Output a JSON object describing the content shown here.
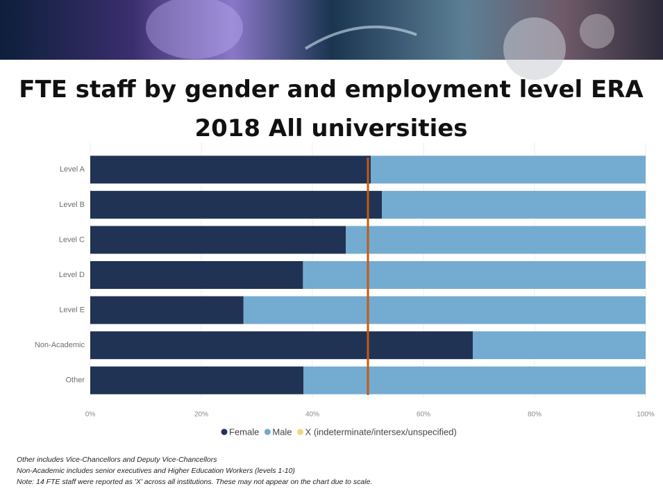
{
  "chart_data": {
    "type": "stacked-bar-horizontal",
    "title": "FTE staff by gender and employment level ERA 2018 All universities",
    "categories": [
      "Level A",
      "Level B",
      "Level C",
      "Level D",
      "Level E",
      "Non-Academic",
      "Other"
    ],
    "series": [
      {
        "name": "Female",
        "color": "#203354",
        "values": [
          50.5,
          52.5,
          46,
          38.3,
          27.6,
          68.9,
          38.4
        ]
      },
      {
        "name": "Male",
        "color": "#74abd1",
        "values": [
          49.5,
          47.5,
          54,
          61.7,
          72.4,
          31.1,
          61.6
        ]
      },
      {
        "name": "X (indeterminate/intersex/unspecified)",
        "color": "#f5d77e",
        "values": [
          0,
          0,
          0,
          0,
          0,
          0,
          0
        ]
      }
    ],
    "xlim": [
      0,
      100
    ],
    "xticks": [
      {
        "value": 0,
        "label": "0%"
      },
      {
        "value": 20,
        "label": "20%"
      },
      {
        "value": 40,
        "label": "40%"
      },
      {
        "value": 60,
        "label": "60%"
      },
      {
        "value": 80,
        "label": "80%"
      },
      {
        "value": 100,
        "label": "100%"
      }
    ],
    "grid": true,
    "reference_line": {
      "value": 50,
      "color": "#c55a11"
    },
    "notes": [
      "Other includes Vice-Chancellors and Deputy Vice-Chancellors",
      "Non-Academic includes senior executives and Higher Education Workers (levels 1-10)",
      "Note: 14 FTE staff were reported as 'X' across all institutions. These may not appear on the chart due to scale."
    ]
  }
}
